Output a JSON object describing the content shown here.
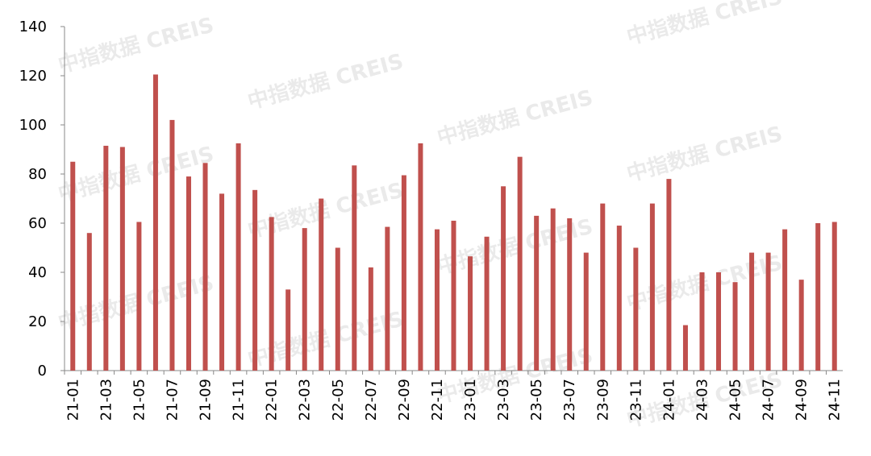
{
  "chart_data": {
    "type": "bar",
    "watermark": "中指数据 CREIS",
    "categories": [
      "21-01",
      null,
      "21-03",
      null,
      "21-05",
      null,
      "21-07",
      null,
      "21-09",
      null,
      "21-11",
      null,
      "22-01",
      null,
      "22-03",
      null,
      "22-05",
      null,
      "22-07",
      null,
      "22-09",
      null,
      "22-11",
      null,
      "23-01",
      null,
      "23-03",
      null,
      "23-05",
      null,
      "23-07",
      null,
      "23-09",
      null,
      "23-11",
      null,
      "24-01",
      null,
      "24-03",
      null,
      "24-05",
      null,
      "24-07",
      null,
      "24-09",
      null,
      "24-11"
    ],
    "values": [
      85,
      56,
      91.5,
      91,
      60.5,
      120.5,
      102,
      79,
      84.5,
      72,
      92.5,
      73.5,
      62.5,
      33,
      58,
      70,
      50,
      83.5,
      42,
      58.5,
      79.5,
      92.5,
      57.5,
      61,
      46.5,
      54.5,
      75,
      87,
      63,
      66,
      62,
      48,
      68,
      59,
      50,
      68,
      78,
      18.5,
      40,
      40,
      36,
      48,
      48,
      57.5,
      37,
      60,
      60.5
    ],
    "color": "#c0504d",
    "ylim": [
      0,
      140
    ],
    "yticks": [
      0,
      20,
      40,
      60,
      80,
      100,
      120,
      140
    ]
  }
}
